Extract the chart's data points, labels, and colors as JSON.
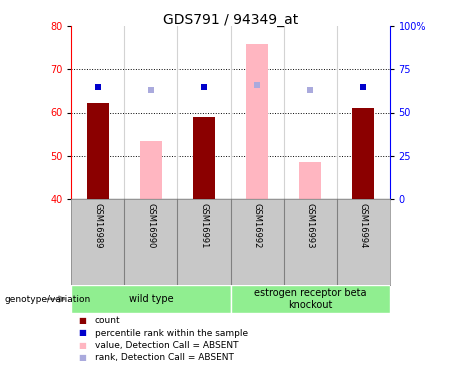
{
  "title": "GDS791 / 94349_at",
  "samples": [
    "GSM16989",
    "GSM16990",
    "GSM16991",
    "GSM16992",
    "GSM16993",
    "GSM16994"
  ],
  "red_bar_values": [
    62.2,
    null,
    59.0,
    null,
    null,
    61.0
  ],
  "pink_bar_values": [
    null,
    53.5,
    null,
    76.0,
    48.5,
    null
  ],
  "blue_square_values": [
    65.0,
    null,
    65.0,
    null,
    null,
    65.0
  ],
  "light_blue_square_values": [
    null,
    63.0,
    null,
    66.0,
    63.0,
    null
  ],
  "ylim_left": [
    40,
    80
  ],
  "ylim_right": [
    0,
    100
  ],
  "yticks_left": [
    40,
    50,
    60,
    70,
    80
  ],
  "yticks_right": [
    0,
    25,
    50,
    75,
    100
  ],
  "ytick_labels_right": [
    "0",
    "25",
    "50",
    "75",
    "100%"
  ],
  "red_color": "#8B0000",
  "pink_color": "#FFB6C1",
  "blue_color": "#0000CC",
  "light_blue_color": "#AAAADD",
  "bar_width": 0.4,
  "genotype_label": "genotype/variation",
  "legend_labels": [
    "count",
    "percentile rank within the sample",
    "value, Detection Call = ABSENT",
    "rank, Detection Call = ABSENT"
  ],
  "legend_colors": [
    "#8B0000",
    "#0000CC",
    "#FFB6C1",
    "#AAAADD"
  ],
  "background_color": "#ffffff",
  "title_fontsize": 10,
  "tick_fontsize": 7,
  "sample_fontsize": 6,
  "group_fontsize": 7,
  "legend_fontsize": 6.5,
  "green_color": "#90EE90"
}
